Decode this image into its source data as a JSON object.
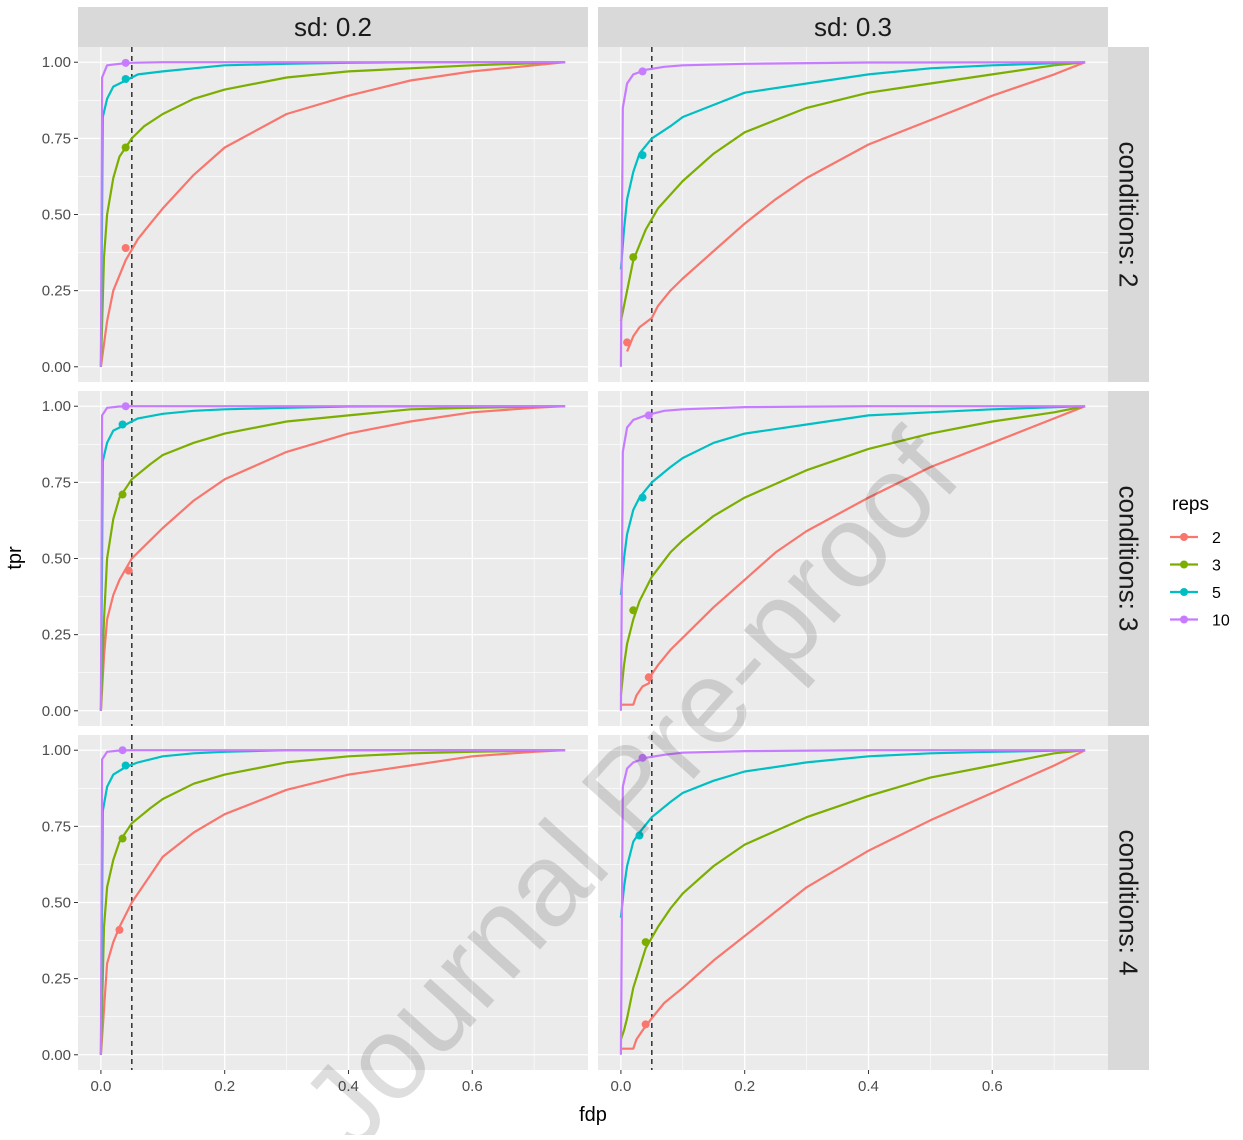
{
  "chart_data": {
    "type": "line",
    "watermark": "Journal Pre-proof",
    "xlabel": "fdp",
    "ylabel": "tpr",
    "xlim": [
      0,
      0.75
    ],
    "ylim": [
      0,
      1
    ],
    "x_ticks": [
      0.0,
      0.2,
      0.4,
      0.6
    ],
    "x_tick_labels": [
      "0.0",
      "0.2",
      "0.4",
      "0.6"
    ],
    "y_ticks": [
      0.0,
      0.25,
      0.5,
      0.75,
      1.0
    ],
    "y_tick_labels": [
      "0.00",
      "0.25",
      "0.50",
      "0.75",
      "1.00"
    ],
    "reference_line_x": 0.05,
    "column_strips": [
      "sd: 0.2",
      "sd: 0.3"
    ],
    "row_strips": [
      "conditions: 2",
      "conditions: 3",
      "conditions: 4"
    ],
    "legend": {
      "title": "reps",
      "position": "right",
      "entries": [
        {
          "label": "2",
          "color": "#F8766D"
        },
        {
          "label": "3",
          "color": "#7CAE00"
        },
        {
          "label": "5",
          "color": "#00BFC4"
        },
        {
          "label": "10",
          "color": "#C77CFF"
        }
      ]
    },
    "grid": true,
    "panels": [
      {
        "column": "sd: 0.2",
        "row": "conditions: 2",
        "series": [
          {
            "reps": "2",
            "x": [
              0,
              0.01,
              0.02,
              0.04,
              0.06,
              0.08,
              0.1,
              0.15,
              0.2,
              0.3,
              0.4,
              0.5,
              0.6,
              0.7,
              0.75
            ],
            "y": [
              0,
              0.15,
              0.25,
              0.35,
              0.42,
              0.47,
              0.52,
              0.63,
              0.72,
              0.83,
              0.89,
              0.94,
              0.97,
              0.99,
              1.0
            ],
            "marker": [
              0.04,
              0.39
            ]
          },
          {
            "reps": "3",
            "x": [
              0,
              0.005,
              0.01,
              0.02,
              0.03,
              0.05,
              0.07,
              0.1,
              0.15,
              0.2,
              0.3,
              0.4,
              0.5,
              0.6,
              0.75
            ],
            "y": [
              0,
              0.36,
              0.5,
              0.62,
              0.69,
              0.75,
              0.79,
              0.83,
              0.88,
              0.91,
              0.95,
              0.97,
              0.98,
              0.99,
              1.0
            ],
            "marker": [
              0.04,
              0.72
            ]
          },
          {
            "reps": "5",
            "x": [
              0,
              0.003,
              0.01,
              0.02,
              0.04,
              0.06,
              0.1,
              0.15,
              0.2,
              0.3,
              0.4,
              0.5,
              0.75
            ],
            "y": [
              0,
              0.82,
              0.88,
              0.92,
              0.94,
              0.96,
              0.97,
              0.98,
              0.99,
              0.995,
              0.998,
              1.0,
              1.0
            ],
            "marker": [
              0.04,
              0.945
            ]
          },
          {
            "reps": "10",
            "x": [
              0,
              0.002,
              0.01,
              0.03,
              0.05,
              0.1,
              0.2,
              0.75
            ],
            "y": [
              0,
              0.95,
              0.99,
              0.995,
              0.998,
              1.0,
              1.0,
              1.0
            ],
            "marker": [
              0.04,
              0.998
            ]
          }
        ]
      },
      {
        "column": "sd: 0.3",
        "row": "conditions: 2",
        "series": [
          {
            "reps": "2",
            "x": [
              0.01,
              0.02,
              0.03,
              0.05,
              0.06,
              0.08,
              0.1,
              0.15,
              0.2,
              0.25,
              0.3,
              0.4,
              0.5,
              0.6,
              0.7,
              0.75
            ],
            "y": [
              0.05,
              0.1,
              0.13,
              0.16,
              0.2,
              0.25,
              0.29,
              0.38,
              0.47,
              0.55,
              0.62,
              0.73,
              0.81,
              0.89,
              0.96,
              1.0
            ],
            "marker": [
              0.01,
              0.08
            ]
          },
          {
            "reps": "3",
            "x": [
              0,
              0.01,
              0.02,
              0.04,
              0.06,
              0.1,
              0.15,
              0.2,
              0.3,
              0.4,
              0.5,
              0.6,
              0.7,
              0.75
            ],
            "y": [
              0.15,
              0.25,
              0.35,
              0.45,
              0.52,
              0.61,
              0.7,
              0.77,
              0.85,
              0.9,
              0.93,
              0.96,
              0.99,
              1.0
            ],
            "marker": [
              0.02,
              0.36
            ]
          },
          {
            "reps": "5",
            "x": [
              0,
              0.005,
              0.01,
              0.02,
              0.03,
              0.05,
              0.08,
              0.1,
              0.15,
              0.2,
              0.3,
              0.4,
              0.5,
              0.6,
              0.75
            ],
            "y": [
              0.32,
              0.45,
              0.55,
              0.64,
              0.7,
              0.75,
              0.79,
              0.82,
              0.86,
              0.9,
              0.93,
              0.96,
              0.98,
              0.99,
              1.0
            ],
            "marker": [
              0.035,
              0.695
            ]
          },
          {
            "reps": "10",
            "x": [
              0,
              0.003,
              0.01,
              0.02,
              0.04,
              0.07,
              0.1,
              0.2,
              0.4,
              0.75
            ],
            "y": [
              0,
              0.85,
              0.93,
              0.96,
              0.975,
              0.985,
              0.99,
              0.995,
              0.999,
              1.0
            ],
            "marker": [
              0.035,
              0.97
            ]
          }
        ]
      },
      {
        "column": "sd: 0.2",
        "row": "conditions: 3",
        "series": [
          {
            "reps": "2",
            "x": [
              0,
              0.005,
              0.01,
              0.02,
              0.03,
              0.05,
              0.08,
              0.1,
              0.15,
              0.2,
              0.3,
              0.4,
              0.5,
              0.6,
              0.7,
              0.75
            ],
            "y": [
              0,
              0.18,
              0.3,
              0.38,
              0.43,
              0.5,
              0.56,
              0.6,
              0.69,
              0.76,
              0.85,
              0.91,
              0.95,
              0.98,
              0.995,
              1.0
            ],
            "marker": [
              0.045,
              0.46
            ]
          },
          {
            "reps": "3",
            "x": [
              0,
              0.005,
              0.01,
              0.02,
              0.03,
              0.05,
              0.08,
              0.1,
              0.15,
              0.2,
              0.3,
              0.4,
              0.5,
              0.6,
              0.75
            ],
            "y": [
              0,
              0.3,
              0.5,
              0.63,
              0.7,
              0.76,
              0.81,
              0.84,
              0.88,
              0.91,
              0.95,
              0.97,
              0.99,
              0.995,
              1.0
            ],
            "marker": [
              0.035,
              0.71
            ]
          },
          {
            "reps": "5",
            "x": [
              0,
              0.003,
              0.01,
              0.02,
              0.04,
              0.06,
              0.1,
              0.15,
              0.2,
              0.3,
              0.4,
              0.75
            ],
            "y": [
              0,
              0.82,
              0.88,
              0.92,
              0.94,
              0.96,
              0.975,
              0.985,
              0.99,
              0.995,
              0.999,
              1.0
            ],
            "marker": [
              0.035,
              0.94
            ]
          },
          {
            "reps": "10",
            "x": [
              0,
              0.002,
              0.01,
              0.03,
              0.05,
              0.1,
              0.75
            ],
            "y": [
              0,
              0.97,
              0.995,
              0.999,
              1.0,
              1.0,
              1.0
            ],
            "marker": [
              0.04,
              1.0
            ]
          }
        ]
      },
      {
        "column": "sd: 0.3",
        "row": "conditions: 3",
        "series": [
          {
            "reps": "2",
            "x": [
              0,
              0.02,
              0.025,
              0.035,
              0.045,
              0.05,
              0.06,
              0.08,
              0.1,
              0.15,
              0.2,
              0.25,
              0.3,
              0.4,
              0.5,
              0.6,
              0.7,
              0.75
            ],
            "y": [
              0.02,
              0.02,
              0.05,
              0.08,
              0.09,
              0.12,
              0.15,
              0.2,
              0.24,
              0.34,
              0.43,
              0.52,
              0.59,
              0.7,
              0.8,
              0.88,
              0.96,
              1.0
            ],
            "marker": [
              0.045,
              0.11
            ]
          },
          {
            "reps": "3",
            "x": [
              0,
              0.005,
              0.01,
              0.02,
              0.03,
              0.05,
              0.08,
              0.1,
              0.15,
              0.2,
              0.3,
              0.4,
              0.5,
              0.6,
              0.7,
              0.75
            ],
            "y": [
              0.05,
              0.15,
              0.22,
              0.3,
              0.36,
              0.44,
              0.52,
              0.56,
              0.64,
              0.7,
              0.79,
              0.86,
              0.91,
              0.95,
              0.98,
              1.0
            ],
            "marker": [
              0.02,
              0.33
            ]
          },
          {
            "reps": "5",
            "x": [
              0,
              0.005,
              0.01,
              0.02,
              0.03,
              0.05,
              0.08,
              0.1,
              0.15,
              0.2,
              0.3,
              0.4,
              0.5,
              0.6,
              0.75
            ],
            "y": [
              0.38,
              0.5,
              0.58,
              0.66,
              0.7,
              0.75,
              0.8,
              0.83,
              0.88,
              0.91,
              0.94,
              0.97,
              0.98,
              0.99,
              1.0
            ],
            "marker": [
              0.035,
              0.7
            ]
          },
          {
            "reps": "10",
            "x": [
              0,
              0.003,
              0.01,
              0.02,
              0.04,
              0.07,
              0.1,
              0.2,
              0.4,
              0.75
            ],
            "y": [
              0,
              0.85,
              0.93,
              0.955,
              0.97,
              0.985,
              0.99,
              0.997,
              1.0,
              1.0
            ],
            "marker": [
              0.045,
              0.97
            ]
          }
        ]
      },
      {
        "column": "sd: 0.2",
        "row": "conditions: 4",
        "series": [
          {
            "reps": "2",
            "x": [
              0,
              0.005,
              0.01,
              0.02,
              0.03,
              0.05,
              0.08,
              0.1,
              0.15,
              0.2,
              0.3,
              0.4,
              0.5,
              0.6,
              0.7,
              0.75
            ],
            "y": [
              0,
              0.15,
              0.3,
              0.37,
              0.42,
              0.5,
              0.59,
              0.65,
              0.73,
              0.79,
              0.87,
              0.92,
              0.95,
              0.98,
              0.995,
              1.0
            ],
            "marker": [
              0.03,
              0.41
            ]
          },
          {
            "reps": "3",
            "x": [
              0,
              0.005,
              0.01,
              0.02,
              0.03,
              0.05,
              0.08,
              0.1,
              0.15,
              0.2,
              0.3,
              0.4,
              0.5,
              0.6,
              0.75
            ],
            "y": [
              0,
              0.42,
              0.55,
              0.64,
              0.7,
              0.76,
              0.81,
              0.84,
              0.89,
              0.92,
              0.96,
              0.98,
              0.99,
              0.995,
              1.0
            ],
            "marker": [
              0.035,
              0.71
            ]
          },
          {
            "reps": "5",
            "x": [
              0,
              0.003,
              0.01,
              0.02,
              0.04,
              0.06,
              0.1,
              0.15,
              0.2,
              0.3,
              0.75
            ],
            "y": [
              0,
              0.8,
              0.88,
              0.92,
              0.945,
              0.96,
              0.98,
              0.99,
              0.995,
              1.0,
              1.0
            ],
            "marker": [
              0.04,
              0.95
            ]
          },
          {
            "reps": "10",
            "x": [
              0,
              0.002,
              0.01,
              0.03,
              0.05,
              0.1,
              0.75
            ],
            "y": [
              0,
              0.97,
              0.995,
              0.999,
              1.0,
              1.0,
              1.0
            ],
            "marker": [
              0.035,
              1.0
            ]
          }
        ]
      },
      {
        "column": "sd: 0.3",
        "row": "conditions: 4",
        "series": [
          {
            "reps": "2",
            "x": [
              0,
              0.02,
              0.025,
              0.035,
              0.05,
              0.07,
              0.1,
              0.15,
              0.2,
              0.25,
              0.3,
              0.4,
              0.5,
              0.6,
              0.7,
              0.75
            ],
            "y": [
              0.02,
              0.02,
              0.05,
              0.08,
              0.12,
              0.17,
              0.22,
              0.31,
              0.39,
              0.47,
              0.55,
              0.67,
              0.77,
              0.86,
              0.95,
              1.0
            ],
            "marker": [
              0.04,
              0.1
            ]
          },
          {
            "reps": "3",
            "x": [
              0,
              0.005,
              0.01,
              0.02,
              0.04,
              0.06,
              0.08,
              0.1,
              0.15,
              0.2,
              0.3,
              0.4,
              0.5,
              0.6,
              0.7,
              0.75
            ],
            "y": [
              0.05,
              0.08,
              0.12,
              0.22,
              0.35,
              0.42,
              0.48,
              0.53,
              0.62,
              0.69,
              0.78,
              0.85,
              0.91,
              0.95,
              0.99,
              1.0
            ],
            "marker": [
              0.04,
              0.37
            ]
          },
          {
            "reps": "5",
            "x": [
              0,
              0.005,
              0.01,
              0.02,
              0.03,
              0.05,
              0.08,
              0.1,
              0.15,
              0.2,
              0.3,
              0.4,
              0.5,
              0.6,
              0.75
            ],
            "y": [
              0.45,
              0.55,
              0.62,
              0.7,
              0.73,
              0.78,
              0.83,
              0.86,
              0.9,
              0.93,
              0.96,
              0.98,
              0.99,
              0.995,
              1.0
            ],
            "marker": [
              0.03,
              0.72
            ]
          },
          {
            "reps": "10",
            "x": [
              0,
              0.003,
              0.01,
              0.02,
              0.04,
              0.07,
              0.1,
              0.2,
              0.4,
              0.75
            ],
            "y": [
              0,
              0.88,
              0.94,
              0.96,
              0.975,
              0.985,
              0.992,
              0.997,
              1.0,
              1.0
            ],
            "marker": [
              0.035,
              0.975
            ]
          }
        ]
      }
    ]
  }
}
